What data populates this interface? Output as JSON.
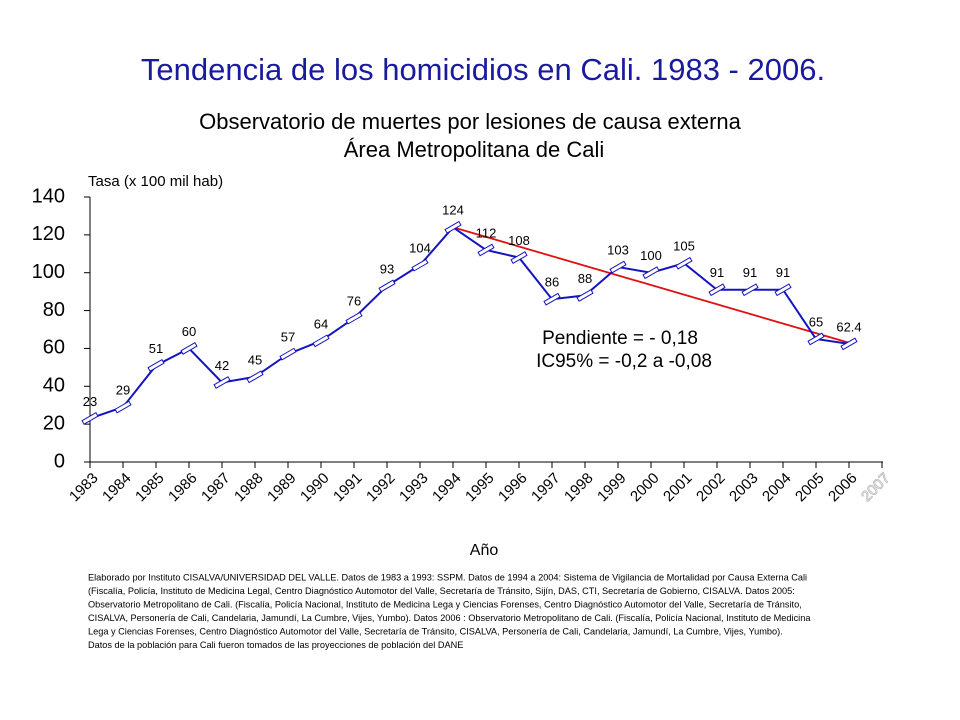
{
  "chart_data": {
    "type": "line",
    "title": "Tendencia de los homicidios en Cali. 1983 - 2006.",
    "subtitle": [
      "Observatorio de muertes por lesiones de causa externa",
      "Área Metropolitana de Cali"
    ],
    "y_label": "Tasa (x 100 mil hab)",
    "x_label": "Año",
    "categories": [
      "1983",
      "1984",
      "1985",
      "1986",
      "1987",
      "1988",
      "1989",
      "1990",
      "1991",
      "1992",
      "1993",
      "1994",
      "1995",
      "1996",
      "1997",
      "1998",
      "1999",
      "2000",
      "2001",
      "2002",
      "2003",
      "2004",
      "2005",
      "2006",
      "2007"
    ],
    "series": [
      {
        "name": "Tasa",
        "color": "#1414c0",
        "values": [
          23,
          29,
          51,
          60,
          42,
          45,
          57,
          64,
          76,
          93,
          104,
          124,
          112,
          108,
          86,
          88,
          103,
          100,
          105,
          91,
          91,
          91,
          65,
          62.4,
          null
        ]
      }
    ],
    "trend": {
      "color": "#e01010",
      "start_category": "1994",
      "end_category": "2006",
      "start_value": 124,
      "end_value": 63
    },
    "annotations": [
      "Pendiente = - 0,18",
      "IC95% = -0,2 a -0,08"
    ],
    "ylim": [
      0,
      140
    ],
    "yticks": [
      0,
      20,
      40,
      60,
      80,
      100,
      120,
      140
    ],
    "footnote": [
      "Elaborado por Instituto CISALVA/UNIVERSIDAD DEL VALLE.  Datos de 1983 a 1993: SSPM. Datos de 1994 a 2004: Sistema de Vigilancia de Mortalidad por Causa Externa Cali",
      "(Fiscalía, Policía, Instituto de Medicina Legal, Centro Diagnóstico Automotor del Valle, Secretaría de Tránsito, Sijín, DAS, CTI, Secretaría de Gobierno, CISALVA.  Datos 2005:",
      "Observatorio Metropolitano de Cali.  (Fiscalía, Policía Nacional, Instituto de Medicina Lega y Ciencias Forenses, Centro Diagnóstico Automotor del Valle, Secretaría de Tránsito,",
      "CISALVA, Personería de Cali,  Candelaria, Jamundí, La Cumbre, Vijes, Yumbo). Datos 2006 :  Observatorio Metropolitano de Cali.  (Fiscalía, Policía Nacional, Instituto de Medicina",
      "Lega y Ciencias Forenses, Centro Diagnóstico Automotor del Valle, Secretaría de Tránsito,  CISALVA, Personería de Cali,  Candelaria, Jamundí, La Cumbre, Vijes, Yumbo).",
      "Datos de  la población para Cali  fueron tomados de las proyecciones de población del  DANE"
    ]
  }
}
